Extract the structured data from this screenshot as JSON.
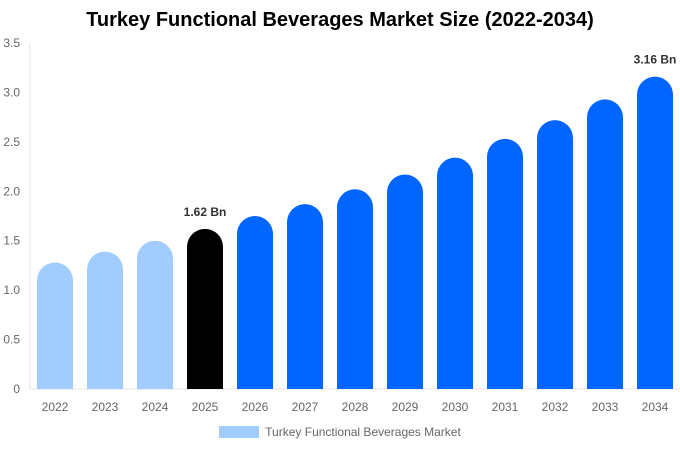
{
  "chart_data": {
    "type": "bar",
    "title": "Turkey Functional Beverages Market Size (2022-2034)",
    "categories": [
      "2022",
      "2023",
      "2024",
      "2025",
      "2026",
      "2027",
      "2028",
      "2029",
      "2030",
      "2031",
      "2032",
      "2033",
      "2034"
    ],
    "series": [
      {
        "name": "Turkey Functional Beverages Market",
        "values": [
          1.28,
          1.39,
          1.5,
          1.62,
          1.75,
          1.87,
          2.02,
          2.17,
          2.34,
          2.53,
          2.72,
          2.93,
          3.16
        ]
      }
    ],
    "data_labels": {
      "3": "1.62 Bn",
      "12": "3.16 Bn"
    },
    "yticks": [
      "0",
      "0.5",
      "1.0",
      "1.5",
      "2.0",
      "2.5",
      "3.0",
      "3.5"
    ],
    "ylim": [
      0,
      3.5
    ],
    "grid": false,
    "legend_position": "bottom",
    "colors": {
      "historical": "#a0cdfd",
      "current": "#000000",
      "forecast": "#0066ff",
      "legend": "#a0cdfd"
    }
  }
}
